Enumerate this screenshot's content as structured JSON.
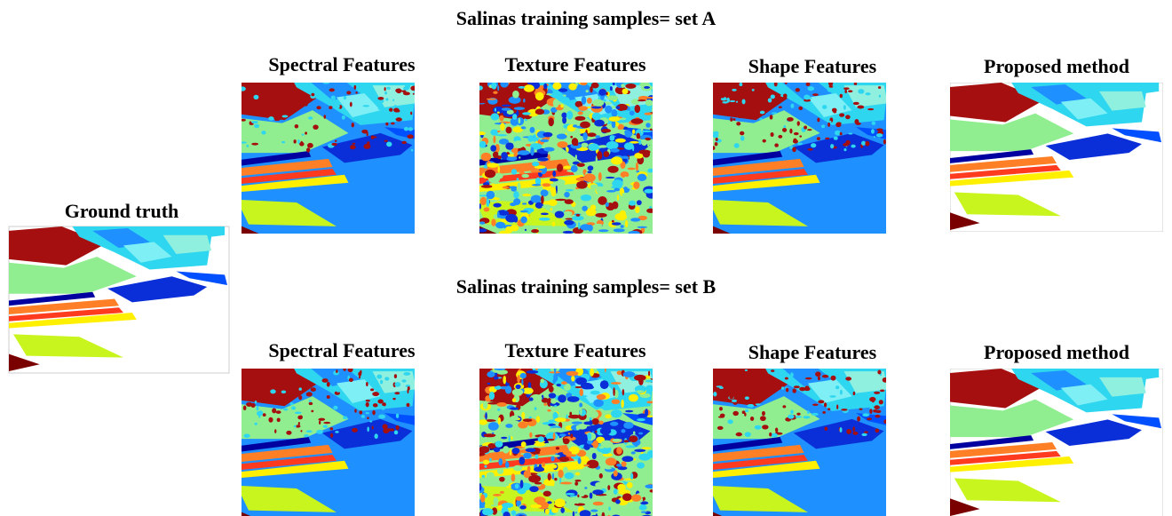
{
  "title_a": "Salinas training samples= set A",
  "title_b": "Salinas training samples= set B",
  "ground_truth": "Ground truth",
  "row_a": [
    "Spectral Features",
    "Texture Features",
    "Shape Features",
    "Proposed method"
  ],
  "row_b": [
    "Spectral Features",
    "Texture Features",
    "Shape Features",
    "Proposed method"
  ]
}
